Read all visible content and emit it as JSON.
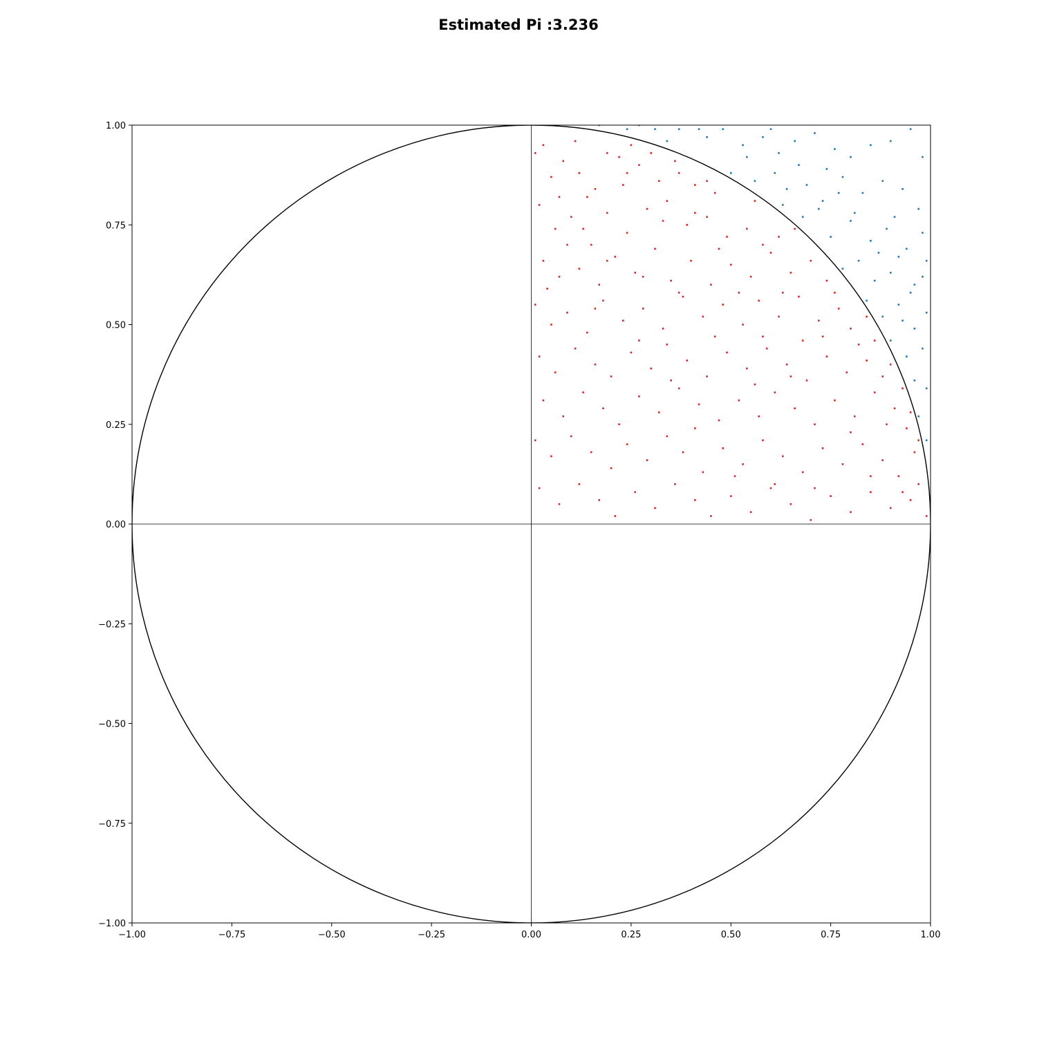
{
  "chart_data": {
    "type": "scatter",
    "title": "Estimated Pi :3.236",
    "xlabel": "",
    "ylabel": "",
    "xlim": [
      -1.0,
      1.0
    ],
    "ylim": [
      -1.0,
      1.0
    ],
    "xticks": [
      "−1.00",
      "−0.75",
      "−0.50",
      "−0.25",
      "0.00",
      "0.25",
      "0.50",
      "0.75",
      "1.00"
    ],
    "yticks": [
      "−1.00",
      "−0.75",
      "−0.50",
      "−0.25",
      "0.00",
      "0.25",
      "0.50",
      "0.75",
      "1.00"
    ],
    "xtick_values": [
      -1.0,
      -0.75,
      -0.5,
      -0.25,
      0.0,
      0.25,
      0.5,
      0.75,
      1.0
    ],
    "ytick_values": [
      -1.0,
      -0.75,
      -0.5,
      -0.25,
      0.0,
      0.25,
      0.5,
      0.75,
      1.0
    ],
    "grid": false,
    "legend": "none",
    "reference_shapes": {
      "circle": {
        "center": [
          0,
          0
        ],
        "radius": 1,
        "color": "#000000"
      },
      "axis_lines": [
        {
          "axis": "x",
          "value": 0
        },
        {
          "axis": "y",
          "value": 0
        }
      ]
    },
    "series": [
      {
        "color": "#d62728",
        "points": [
          [
            0.03,
            0.95
          ],
          [
            0.08,
            0.91
          ],
          [
            0.12,
            0.88
          ],
          [
            0.16,
            0.84
          ],
          [
            0.22,
            0.92
          ],
          [
            0.27,
            0.9
          ],
          [
            0.32,
            0.86
          ],
          [
            0.36,
            0.91
          ],
          [
            0.41,
            0.85
          ],
          [
            0.46,
            0.83
          ],
          [
            0.02,
            0.8
          ],
          [
            0.06,
            0.74
          ],
          [
            0.1,
            0.77
          ],
          [
            0.15,
            0.7
          ],
          [
            0.19,
            0.78
          ],
          [
            0.24,
            0.73
          ],
          [
            0.29,
            0.79
          ],
          [
            0.34,
            0.81
          ],
          [
            0.39,
            0.75
          ],
          [
            0.44,
            0.77
          ],
          [
            0.49,
            0.72
          ],
          [
            0.54,
            0.74
          ],
          [
            0.58,
            0.7
          ],
          [
            0.62,
            0.72
          ],
          [
            0.03,
            0.66
          ],
          [
            0.07,
            0.62
          ],
          [
            0.12,
            0.64
          ],
          [
            0.17,
            0.6
          ],
          [
            0.21,
            0.67
          ],
          [
            0.26,
            0.63
          ],
          [
            0.31,
            0.69
          ],
          [
            0.35,
            0.61
          ],
          [
            0.4,
            0.66
          ],
          [
            0.45,
            0.6
          ],
          [
            0.5,
            0.65
          ],
          [
            0.55,
            0.62
          ],
          [
            0.6,
            0.68
          ],
          [
            0.65,
            0.63
          ],
          [
            0.7,
            0.66
          ],
          [
            0.74,
            0.61
          ],
          [
            0.01,
            0.55
          ],
          [
            0.05,
            0.5
          ],
          [
            0.09,
            0.53
          ],
          [
            0.14,
            0.48
          ],
          [
            0.18,
            0.56
          ],
          [
            0.23,
            0.51
          ],
          [
            0.28,
            0.54
          ],
          [
            0.33,
            0.49
          ],
          [
            0.38,
            0.57
          ],
          [
            0.43,
            0.52
          ],
          [
            0.48,
            0.55
          ],
          [
            0.53,
            0.5
          ],
          [
            0.57,
            0.56
          ],
          [
            0.62,
            0.52
          ],
          [
            0.67,
            0.57
          ],
          [
            0.72,
            0.51
          ],
          [
            0.77,
            0.54
          ],
          [
            0.8,
            0.49
          ],
          [
            0.02,
            0.42
          ],
          [
            0.06,
            0.38
          ],
          [
            0.11,
            0.44
          ],
          [
            0.16,
            0.4
          ],
          [
            0.2,
            0.37
          ],
          [
            0.25,
            0.43
          ],
          [
            0.3,
            0.39
          ],
          [
            0.34,
            0.45
          ],
          [
            0.39,
            0.41
          ],
          [
            0.44,
            0.37
          ],
          [
            0.49,
            0.43
          ],
          [
            0.54,
            0.39
          ],
          [
            0.59,
            0.44
          ],
          [
            0.64,
            0.4
          ],
          [
            0.69,
            0.36
          ],
          [
            0.74,
            0.42
          ],
          [
            0.79,
            0.38
          ],
          [
            0.84,
            0.41
          ],
          [
            0.88,
            0.37
          ],
          [
            0.03,
            0.31
          ],
          [
            0.08,
            0.27
          ],
          [
            0.13,
            0.33
          ],
          [
            0.18,
            0.29
          ],
          [
            0.22,
            0.25
          ],
          [
            0.27,
            0.32
          ],
          [
            0.32,
            0.28
          ],
          [
            0.37,
            0.34
          ],
          [
            0.42,
            0.3
          ],
          [
            0.47,
            0.26
          ],
          [
            0.52,
            0.31
          ],
          [
            0.57,
            0.27
          ],
          [
            0.61,
            0.33
          ],
          [
            0.66,
            0.29
          ],
          [
            0.71,
            0.25
          ],
          [
            0.76,
            0.31
          ],
          [
            0.81,
            0.27
          ],
          [
            0.86,
            0.33
          ],
          [
            0.91,
            0.29
          ],
          [
            0.94,
            0.24
          ],
          [
            0.01,
            0.21
          ],
          [
            0.05,
            0.17
          ],
          [
            0.1,
            0.22
          ],
          [
            0.15,
            0.18
          ],
          [
            0.2,
            0.14
          ],
          [
            0.24,
            0.2
          ],
          [
            0.29,
            0.16
          ],
          [
            0.34,
            0.22
          ],
          [
            0.38,
            0.18
          ],
          [
            0.43,
            0.13
          ],
          [
            0.48,
            0.19
          ],
          [
            0.53,
            0.15
          ],
          [
            0.58,
            0.21
          ],
          [
            0.63,
            0.17
          ],
          [
            0.68,
            0.13
          ],
          [
            0.73,
            0.19
          ],
          [
            0.78,
            0.15
          ],
          [
            0.83,
            0.2
          ],
          [
            0.88,
            0.16
          ],
          [
            0.92,
            0.12
          ],
          [
            0.96,
            0.18
          ],
          [
            0.02,
            0.09
          ],
          [
            0.07,
            0.05
          ],
          [
            0.12,
            0.1
          ],
          [
            0.17,
            0.06
          ],
          [
            0.21,
            0.02
          ],
          [
            0.26,
            0.08
          ],
          [
            0.31,
            0.04
          ],
          [
            0.36,
            0.1
          ],
          [
            0.41,
            0.06
          ],
          [
            0.45,
            0.02
          ],
          [
            0.5,
            0.07
          ],
          [
            0.55,
            0.03
          ],
          [
            0.6,
            0.09
          ],
          [
            0.65,
            0.05
          ],
          [
            0.7,
            0.01
          ],
          [
            0.75,
            0.07
          ],
          [
            0.8,
            0.03
          ],
          [
            0.85,
            0.08
          ],
          [
            0.9,
            0.04
          ],
          [
            0.95,
            0.06
          ],
          [
            0.99,
            0.02
          ],
          [
            0.11,
            0.96
          ],
          [
            0.19,
            0.93
          ],
          [
            0.25,
            0.95
          ],
          [
            0.3,
            0.93
          ],
          [
            0.37,
            0.88
          ],
          [
            0.44,
            0.86
          ],
          [
            0.05,
            0.87
          ],
          [
            0.14,
            0.82
          ],
          [
            0.23,
            0.85
          ],
          [
            0.33,
            0.76
          ],
          [
            0.47,
            0.69
          ],
          [
            0.52,
            0.58
          ],
          [
            0.58,
            0.47
          ],
          [
            0.63,
            0.58
          ],
          [
            0.68,
            0.46
          ],
          [
            0.73,
            0.47
          ],
          [
            0.82,
            0.45
          ],
          [
            0.86,
            0.46
          ],
          [
            0.9,
            0.4
          ],
          [
            0.93,
            0.34
          ],
          [
            0.97,
            0.21
          ],
          [
            0.97,
            0.1
          ],
          [
            0.93,
            0.08
          ],
          [
            0.04,
            0.59
          ],
          [
            0.09,
            0.7
          ],
          [
            0.16,
            0.54
          ],
          [
            0.27,
            0.46
          ],
          [
            0.35,
            0.36
          ],
          [
            0.41,
            0.24
          ],
          [
            0.51,
            0.12
          ],
          [
            0.61,
            0.1
          ],
          [
            0.71,
            0.09
          ],
          [
            0.8,
            0.23
          ],
          [
            0.85,
            0.12
          ],
          [
            0.65,
            0.37
          ],
          [
            0.56,
            0.35
          ],
          [
            0.46,
            0.47
          ],
          [
            0.37,
            0.58
          ],
          [
            0.28,
            0.62
          ],
          [
            0.19,
            0.66
          ],
          [
            0.13,
            0.74
          ],
          [
            0.07,
            0.82
          ],
          [
            0.01,
            0.93
          ],
          [
            0.24,
            0.88
          ],
          [
            0.41,
            0.78
          ],
          [
            0.56,
            0.81
          ],
          [
            0.66,
            0.74
          ],
          [
            0.76,
            0.58
          ],
          [
            0.84,
            0.52
          ],
          [
            0.89,
            0.25
          ],
          [
            0.95,
            0.28
          ]
        ]
      },
      {
        "color": "#1f77b4",
        "points": [
          [
            0.17,
            1.0
          ],
          [
            0.24,
            0.99
          ],
          [
            0.31,
            0.99
          ],
          [
            0.37,
            0.99
          ],
          [
            0.42,
            0.99
          ],
          [
            0.48,
            0.99
          ],
          [
            0.53,
            0.95
          ],
          [
            0.58,
            0.97
          ],
          [
            0.62,
            0.93
          ],
          [
            0.66,
            0.96
          ],
          [
            0.71,
            0.98
          ],
          [
            0.76,
            0.94
          ],
          [
            0.8,
            0.92
          ],
          [
            0.85,
            0.95
          ],
          [
            0.9,
            0.96
          ],
          [
            0.95,
            0.99
          ],
          [
            0.98,
            0.92
          ],
          [
            0.5,
            0.88
          ],
          [
            0.56,
            0.86
          ],
          [
            0.61,
            0.88
          ],
          [
            0.64,
            0.84
          ],
          [
            0.69,
            0.85
          ],
          [
            0.73,
            0.81
          ],
          [
            0.78,
            0.87
          ],
          [
            0.83,
            0.83
          ],
          [
            0.88,
            0.86
          ],
          [
            0.93,
            0.84
          ],
          [
            0.97,
            0.79
          ],
          [
            0.68,
            0.77
          ],
          [
            0.72,
            0.79
          ],
          [
            0.75,
            0.72
          ],
          [
            0.8,
            0.76
          ],
          [
            0.85,
            0.71
          ],
          [
            0.89,
            0.74
          ],
          [
            0.94,
            0.69
          ],
          [
            0.98,
            0.73
          ],
          [
            0.78,
            0.64
          ],
          [
            0.82,
            0.66
          ],
          [
            0.86,
            0.61
          ],
          [
            0.9,
            0.63
          ],
          [
            0.95,
            0.58
          ],
          [
            0.98,
            0.62
          ],
          [
            0.84,
            0.56
          ],
          [
            0.88,
            0.52
          ],
          [
            0.92,
            0.55
          ],
          [
            0.96,
            0.49
          ],
          [
            0.99,
            0.53
          ],
          [
            0.9,
            0.46
          ],
          [
            0.94,
            0.42
          ],
          [
            0.98,
            0.44
          ],
          [
            0.96,
            0.36
          ],
          [
            0.99,
            0.34
          ],
          [
            0.97,
            0.27
          ],
          [
            0.99,
            0.21
          ],
          [
            0.93,
            0.51
          ],
          [
            0.87,
            0.68
          ],
          [
            0.81,
            0.78
          ],
          [
            0.74,
            0.89
          ],
          [
            0.67,
            0.9
          ],
          [
            0.6,
            0.99
          ],
          [
            0.54,
            0.92
          ],
          [
            0.44,
            0.97
          ],
          [
            0.34,
            0.96
          ],
          [
            0.27,
            1.0
          ],
          [
            0.63,
            0.8
          ],
          [
            0.77,
            0.83
          ],
          [
            0.91,
            0.77
          ],
          [
            0.99,
            0.66
          ],
          [
            0.96,
            0.6
          ],
          [
            0.92,
            0.67
          ]
        ]
      }
    ]
  }
}
